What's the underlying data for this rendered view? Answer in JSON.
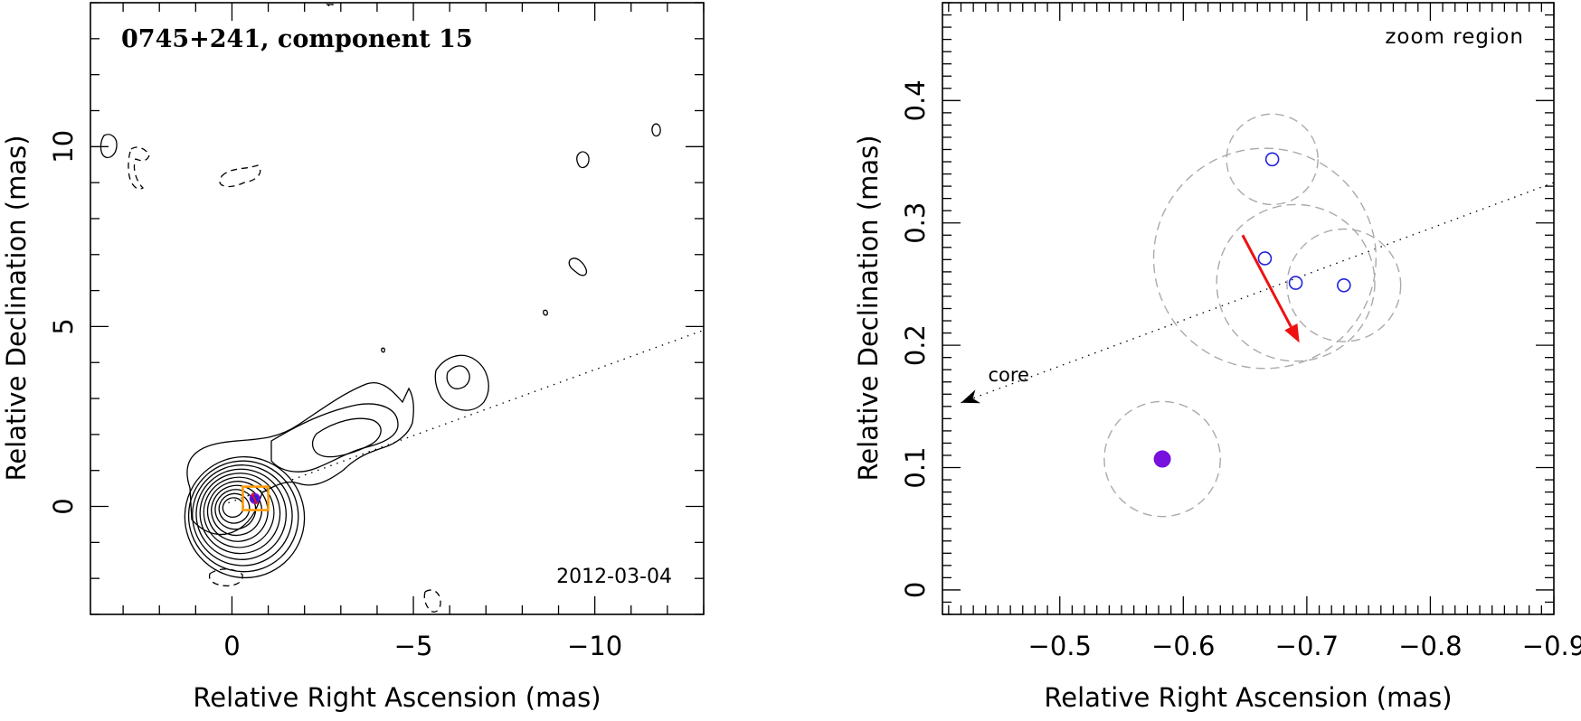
{
  "chart_data": [
    {
      "type": "contour",
      "title": "0745+241, component 15",
      "annotation": "2012-03-04",
      "xlabel": "Relative Right Ascension (mas)",
      "ylabel": "Relative Declination (mas)",
      "xlim": [
        3.9,
        -13
      ],
      "ylim": [
        -3.0,
        14.0
      ],
      "x_ticks": [
        0,
        -5,
        -10
      ],
      "x_tick_labels": [
        "0",
        "−5",
        "−10"
      ],
      "y_ticks": [
        0,
        5,
        10
      ],
      "y_tick_labels": [
        "0",
        "5",
        "10"
      ],
      "jet_direction_line": [
        [
          0.1,
          0.1
        ],
        [
          -13,
          4.9
        ]
      ],
      "zoom_box": {
        "x": [
          -0.4,
          -0.9
        ],
        "y": [
          0.0,
          0.45
        ]
      },
      "component_position": {
        "x": -0.63,
        "y": 0.22
      },
      "contour_levels_count": 11,
      "negative_contours": true
    },
    {
      "type": "scatter",
      "title": "zoom region",
      "xlabel": "Relative Right Ascension (mas)",
      "ylabel": "Relative Declination (mas)",
      "xlim": [
        -0.405,
        -0.9
      ],
      "ylim": [
        -0.02,
        0.48
      ],
      "x_ticks": [
        -0.5,
        -0.6,
        -0.7,
        -0.8,
        -0.9
      ],
      "x_tick_labels": [
        "−0.5",
        "−0.6",
        "−0.7",
        "−0.8",
        "−0.9"
      ],
      "y_ticks": [
        0,
        0.1,
        0.2,
        0.3,
        0.4
      ],
      "y_tick_labels": [
        "0",
        "0.1",
        "0.2",
        "0.3",
        "0.4"
      ],
      "core_label": "core",
      "core_direction_line": [
        [
          -0.42,
          0.153
        ],
        [
          -0.9,
          0.333
        ]
      ],
      "points": [
        {
          "x": -0.583,
          "y": 0.107,
          "r": 0.047,
          "filled": true
        },
        {
          "x": -0.672,
          "y": 0.352,
          "r": 0.037,
          "filled": false
        },
        {
          "x": -0.666,
          "y": 0.271,
          "r": 0.09,
          "filled": false
        },
        {
          "x": -0.691,
          "y": 0.251,
          "r": 0.064,
          "filled": false
        },
        {
          "x": -0.73,
          "y": 0.249,
          "r": 0.046,
          "filled": false
        }
      ],
      "velocity_arrow": {
        "from": [
          -0.648,
          0.29
        ],
        "to": [
          -0.694,
          0.202
        ]
      }
    }
  ],
  "colors": {
    "contour": "#000000",
    "marker_open": "#2222dd",
    "marker_filled": "#7711dd",
    "error_circle": "#aaaaaa",
    "arrow": "#ee1111",
    "zoom_box": "#ff9900"
  }
}
